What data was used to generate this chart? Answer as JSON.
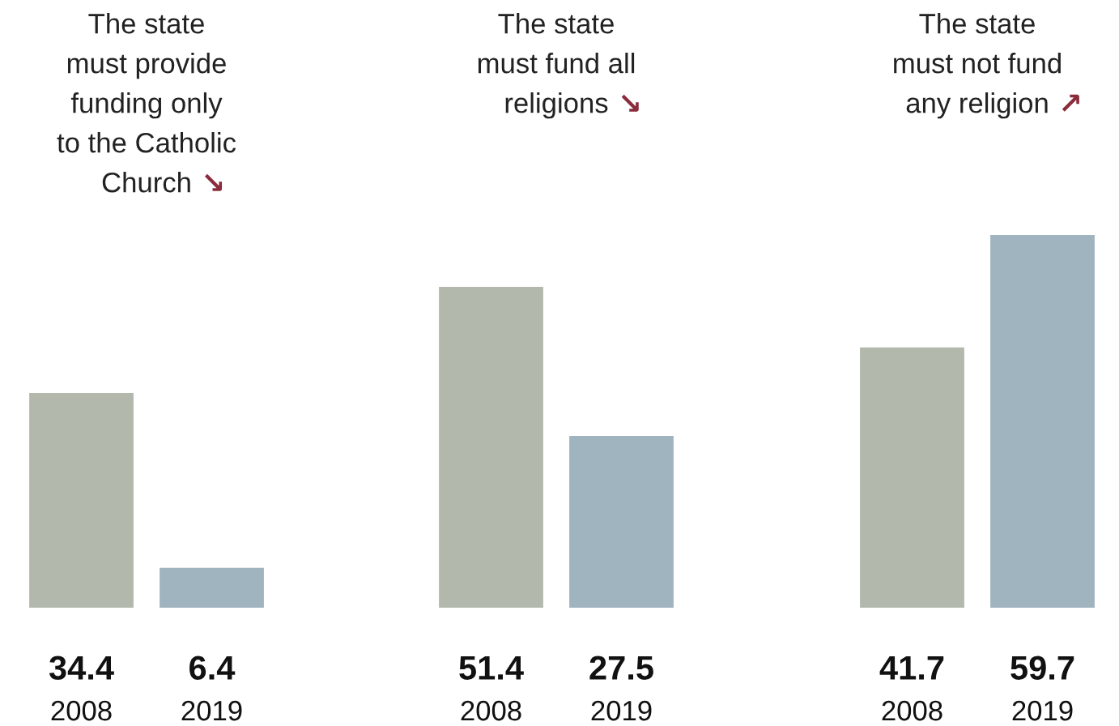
{
  "chart_data": [
    {
      "type": "bar",
      "title": "The state\nmust provide\nfunding only\nto the Catholic\nChurch",
      "annotations": [
        "↘"
      ],
      "categories": [
        "2008",
        "2019"
      ],
      "values": [
        34.4,
        6.4
      ],
      "colors": [
        "#b3b8ad",
        "#a0b4bf"
      ],
      "data_labels": true
    },
    {
      "type": "bar",
      "title": "The state\nmust fund all\nreligions",
      "annotations": [
        "↘"
      ],
      "categories": [
        "2008",
        "2019"
      ],
      "values": [
        51.4,
        27.5
      ],
      "colors": [
        "#b3b8ad",
        "#a0b4bf"
      ],
      "data_labels": true
    },
    {
      "type": "bar",
      "title": "The state\nmust not fund\nany religion",
      "annotations": [
        "↗"
      ],
      "categories": [
        "2008",
        "2019"
      ],
      "values": [
        41.7,
        59.7
      ],
      "colors": [
        "#b3b8ad",
        "#a0b4bf"
      ],
      "data_labels": true
    }
  ]
}
